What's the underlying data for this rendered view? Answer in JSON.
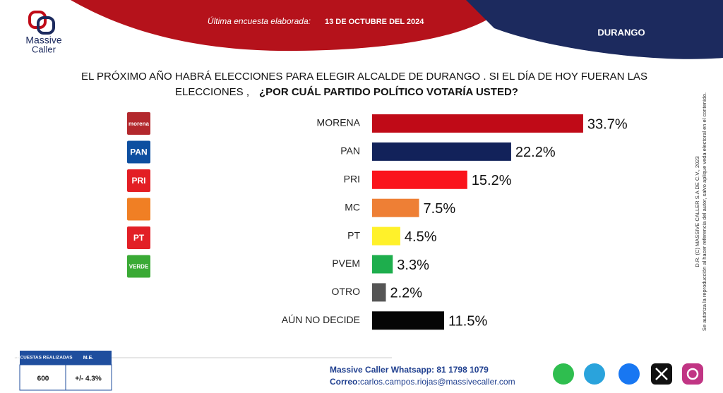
{
  "header": {
    "survey_label": "Última encuesta elaborada:",
    "survey_date": "13 DE OCTUBRE DEL 2024",
    "region": "DURANGO",
    "brand_top": "Massive",
    "brand_bottom": "Caller"
  },
  "chart_data": {
    "type": "hbar",
    "title_lines": [
      "EL PRÓXIMO AÑO HABRÁ ELECCIONES PARA ELEGIR ALCALDE DE DURANGO . SI EL DÍA DE HOY FUERAN LAS",
      "ELECCIONES ,"
    ],
    "title_question": "¿POR CUÁL PARTIDO POLÍTICO VOTARÍA USTED?",
    "categories": [
      "MORENA",
      "PAN",
      "PRI",
      "MC",
      "PT",
      "PVEM",
      "OTRO",
      "AÚN NO DECIDE"
    ],
    "values": [
      33.7,
      22.2,
      15.2,
      7.5,
      4.5,
      3.3,
      2.2,
      11.5
    ],
    "value_labels": [
      "33.7%",
      "22.2%",
      "15.2%",
      "7.5%",
      "4.5%",
      "3.3%",
      "2.2%",
      "11.5%"
    ],
    "colors": [
      "#c00a17",
      "#12225a",
      "#fa141c",
      "#ee7f35",
      "#fff12a",
      "#1eae4d",
      "#555555",
      "#050505"
    ]
  },
  "logos": [
    {
      "text": "morena",
      "color": "#b3282d"
    },
    {
      "text": "PAN",
      "color": "#0d4fa0"
    },
    {
      "text": "PRI",
      "color": "#e31e24"
    },
    {
      "color": "#f07f24"
    },
    {
      "text": "PT",
      "color": "#e21f26"
    },
    {
      "text": "VERDE",
      "color": "#3aaa35"
    }
  ],
  "side_notes": [
    "D.R. (C) MASSIVE CALLER S.A DE C.V., 2023",
    "Se autoriza la reproducción al hacer referencia del autor, salvo aplique veda electoral en el contenido."
  ],
  "sample_table": {
    "headers": [
      "ENCUESTAS REALIZADAS",
      "M.E."
    ],
    "values": [
      "600",
      "+/- 4.3%"
    ]
  },
  "footer": {
    "whatsapp": "Massive Caller Whatsapp: 81 1798 1079",
    "email_label": "Correo:",
    "email": "carlos.campos.riojas@massivecaller.com"
  }
}
